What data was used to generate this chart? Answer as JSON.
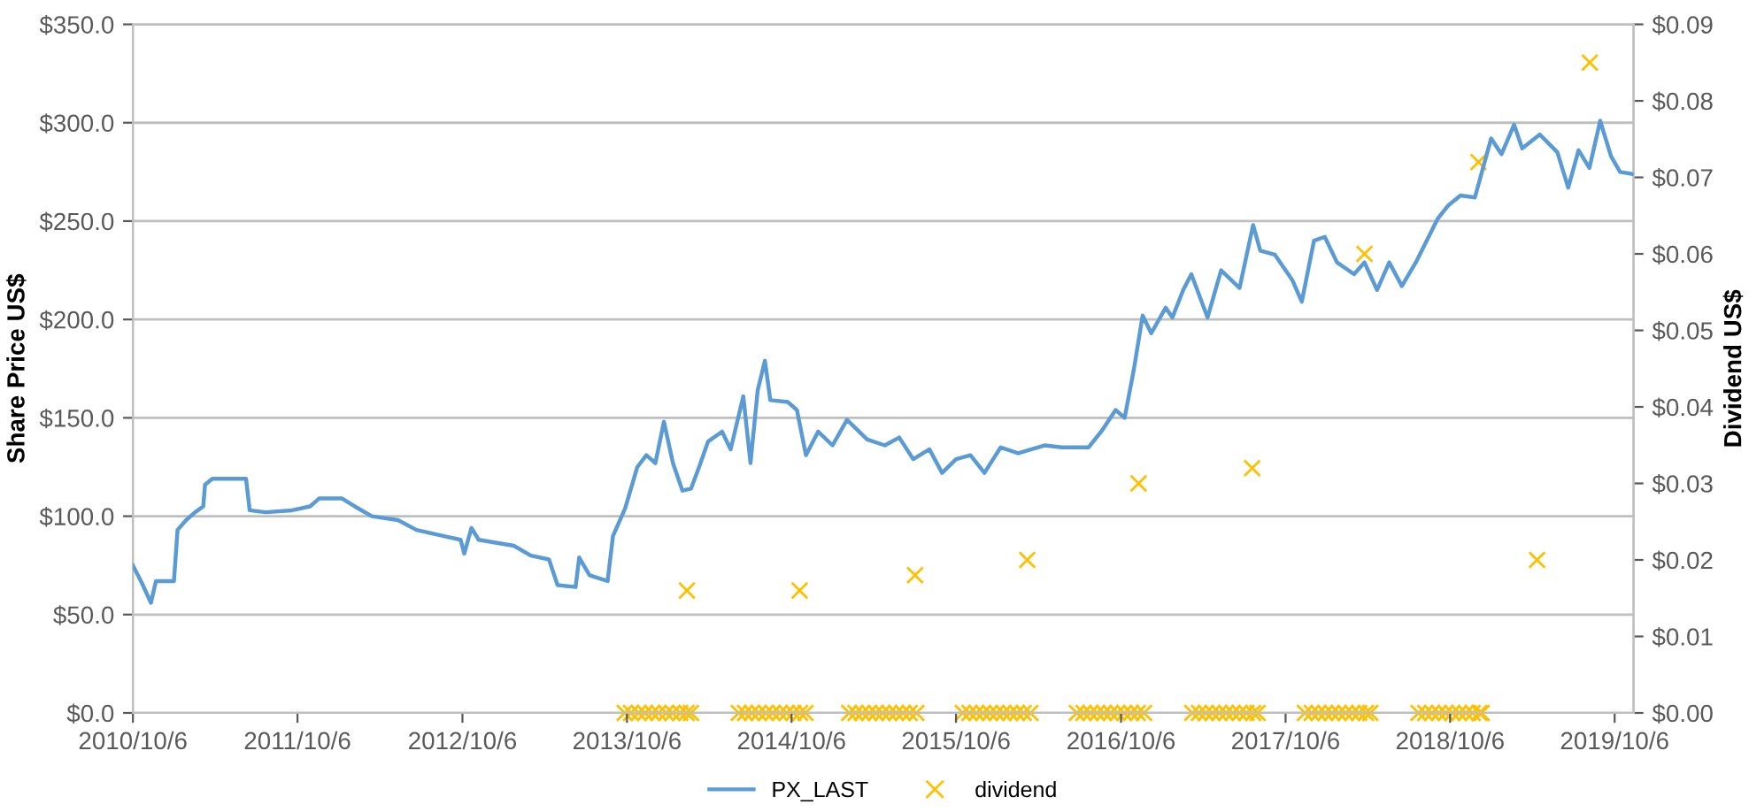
{
  "chart_data": {
    "type": "line",
    "ylabel": "Share Price US$",
    "y2label": "Dividend US$",
    "xlim": [
      "2010-10-06",
      "2019-11-17"
    ],
    "xticks": [
      {
        "value": "2010-10-06",
        "label": "2010/10/6"
      },
      {
        "value": "2011-10-06",
        "label": "2011/10/6"
      },
      {
        "value": "2012-10-06",
        "label": "2012/10/6"
      },
      {
        "value": "2013-10-06",
        "label": "2013/10/6"
      },
      {
        "value": "2014-10-06",
        "label": "2014/10/6"
      },
      {
        "value": "2015-10-06",
        "label": "2015/10/6"
      },
      {
        "value": "2016-10-06",
        "label": "2016/10/6"
      },
      {
        "value": "2017-10-06",
        "label": "2017/10/6"
      },
      {
        "value": "2018-10-06",
        "label": "2018/10/6"
      },
      {
        "value": "2019-10-06",
        "label": "2019/10/6"
      }
    ],
    "ylim": [
      0,
      350
    ],
    "yticks": [
      {
        "value": 0,
        "label": "$0.0"
      },
      {
        "value": 50,
        "label": "$50.0"
      },
      {
        "value": 100,
        "label": "$100.0"
      },
      {
        "value": 150,
        "label": "$150.0"
      },
      {
        "value": 200,
        "label": "$200.0"
      },
      {
        "value": 250,
        "label": "$250.0"
      },
      {
        "value": 300,
        "label": "$300.0"
      },
      {
        "value": 350,
        "label": "$350.0"
      }
    ],
    "y2lim": [
      0,
      0.09
    ],
    "y2ticks": [
      {
        "value": 0,
        "label": "$0.00"
      },
      {
        "value": 0.01,
        "label": "$0.01"
      },
      {
        "value": 0.02,
        "label": "$0.02"
      },
      {
        "value": 0.03,
        "label": "$0.03"
      },
      {
        "value": 0.04,
        "label": "$0.04"
      },
      {
        "value": 0.05,
        "label": "$0.05"
      },
      {
        "value": 0.06,
        "label": "$0.06"
      },
      {
        "value": 0.07,
        "label": "$0.07"
      },
      {
        "value": 0.08,
        "label": "$0.08"
      },
      {
        "value": 0.09,
        "label": "$0.09"
      }
    ],
    "grid": "y",
    "legend": "bottom",
    "series": [
      {
        "name": "PX_LAST",
        "color": "#5b9bd5",
        "marker": "none",
        "line_style": "solid",
        "x": [
          "2010-10-06",
          "2010-10-26",
          "2010-11-15",
          "2010-11-26",
          "2011-01-05",
          "2011-01-13",
          "2011-02-01",
          "2011-02-21",
          "2011-03-11",
          "2011-03-15",
          "2011-03-31",
          "2011-06-14",
          "2011-06-22",
          "2011-07-27",
          "2011-09-24",
          "2011-11-03",
          "2011-11-23",
          "2012-01-13",
          "2012-02-10",
          "2012-03-19",
          "2012-05-16",
          "2012-06-26",
          "2012-10-02",
          "2012-10-10",
          "2012-10-26",
          "2012-11-11",
          "2013-01-28",
          "2013-03-07",
          "2013-04-16",
          "2013-05-05",
          "2013-06-14",
          "2013-06-22",
          "2013-07-15",
          "2013-08-24",
          "2013-09-05",
          "2013-10-02",
          "2013-10-29",
          "2013-11-18",
          "2013-12-08",
          "2013-12-27",
          "2014-01-16",
          "2014-02-06",
          "2014-02-25",
          "2014-03-15",
          "2014-04-04",
          "2014-05-05",
          "2014-05-24",
          "2014-06-21",
          "2014-07-07",
          "2014-07-23",
          "2014-08-08",
          "2014-08-20",
          "2014-09-28",
          "2014-10-18",
          "2014-11-07",
          "2014-12-04",
          "2015-01-05",
          "2015-02-06",
          "2015-03-23",
          "2015-05-01",
          "2015-06-02",
          "2015-07-03",
          "2015-08-08",
          "2015-09-05",
          "2015-10-06",
          "2015-11-07",
          "2015-12-08",
          "2016-01-13",
          "2016-02-21",
          "2016-04-19",
          "2016-05-28",
          "2016-07-26",
          "2016-08-23",
          "2016-09-24",
          "2016-10-14",
          "2016-11-03",
          "2016-11-23",
          "2016-12-12",
          "2017-01-13",
          "2017-01-28",
          "2017-02-21",
          "2017-03-11",
          "2017-04-16",
          "2017-05-16",
          "2017-06-26",
          "2017-07-26",
          "2017-08-11",
          "2017-09-12",
          "2017-10-21",
          "2017-11-11",
          "2017-12-08",
          "2018-01-01",
          "2018-01-28",
          "2018-03-07",
          "2018-03-30",
          "2018-04-27",
          "2018-05-24",
          "2018-06-21",
          "2018-07-22",
          "2018-09-08",
          "2018-10-02",
          "2018-10-29",
          "2018-11-30",
          "2019-01-05",
          "2019-01-28",
          "2019-02-25",
          "2019-03-15",
          "2019-04-23",
          "2019-06-01",
          "2019-06-25",
          "2019-07-18",
          "2019-08-11",
          "2019-09-04",
          "2019-09-28",
          "2019-10-18",
          "2019-11-14"
        ],
        "values": [
          75,
          66,
          56,
          67,
          67,
          93,
          98,
          102,
          105,
          116,
          119,
          119,
          103,
          102,
          103,
          105,
          109,
          109,
          105,
          100,
          98,
          93,
          88,
          81,
          94,
          88,
          85,
          80,
          78,
          65,
          64,
          79,
          70,
          67,
          90,
          104,
          125,
          131,
          127,
          148,
          127,
          113,
          114,
          125,
          138,
          143,
          134,
          161,
          127,
          164,
          179,
          159,
          158,
          154,
          131,
          143,
          136,
          149,
          139,
          136,
          140,
          129,
          134,
          122,
          129,
          131,
          122,
          135,
          132,
          136,
          135,
          135,
          143,
          154,
          150,
          174,
          202,
          193,
          206,
          201,
          215,
          223,
          201,
          225,
          216,
          248,
          235,
          233,
          220,
          209,
          240,
          242,
          229,
          223,
          229,
          215,
          229,
          217,
          229,
          251,
          258,
          263,
          262,
          292,
          284,
          299,
          287,
          294,
          285,
          267,
          286,
          277,
          301,
          283,
          275,
          274
        ]
      },
      {
        "name": "dividend",
        "type": "scatter",
        "axis": "y2",
        "color": "#ffc000",
        "marker": "cross",
        "x": [
          "2013-10-01",
          "2013-10-15",
          "2013-11-01",
          "2013-11-15",
          "2013-12-01",
          "2013-12-15",
          "2014-01-01",
          "2014-01-15",
          "2014-02-01",
          "2014-02-15",
          "2014-02-16",
          "2014-02-25",
          "2014-06-11",
          "2014-06-25",
          "2014-07-10",
          "2014-07-25",
          "2014-08-10",
          "2014-08-25",
          "2014-09-10",
          "2014-09-25",
          "2014-10-10",
          "2014-10-24",
          "2014-10-25",
          "2014-11-06",
          "2015-02-11",
          "2015-02-25",
          "2015-03-12",
          "2015-03-27",
          "2015-04-11",
          "2015-04-26",
          "2015-05-11",
          "2015-05-26",
          "2015-06-10",
          "2015-06-25",
          "2015-07-07",
          "2015-07-10",
          "2015-10-21",
          "2015-11-05",
          "2015-11-20",
          "2015-12-05",
          "2015-12-20",
          "2016-01-04",
          "2016-01-19",
          "2016-02-03",
          "2016-02-18",
          "2016-03-04",
          "2016-03-12",
          "2016-03-19",
          "2016-06-30",
          "2016-07-15",
          "2016-07-30",
          "2016-08-14",
          "2016-08-29",
          "2016-09-13",
          "2016-09-28",
          "2016-10-13",
          "2016-10-28",
          "2016-11-12",
          "2016-11-14",
          "2016-11-26",
          "2017-03-13",
          "2017-03-28",
          "2017-04-12",
          "2017-04-27",
          "2017-05-12",
          "2017-05-27",
          "2017-06-11",
          "2017-06-26",
          "2017-07-11",
          "2017-07-24",
          "2017-07-26",
          "2017-08-05",
          "2017-11-18",
          "2017-12-03",
          "2017-12-18",
          "2018-01-02",
          "2018-01-17",
          "2018-02-01",
          "2018-02-16",
          "2018-03-03",
          "2018-03-18",
          "2018-03-30",
          "2018-04-02",
          "2018-04-12",
          "2018-07-28",
          "2018-08-12",
          "2018-08-27",
          "2018-09-11",
          "2018-09-26",
          "2018-10-11",
          "2018-10-26",
          "2018-11-10",
          "2018-11-25",
          "2018-12-08",
          "2018-12-10",
          "2018-12-15",
          "2019-04-17",
          "2019-08-12"
        ],
        "values": [
          0,
          0,
          0,
          0,
          0,
          0,
          0,
          0,
          0,
          0,
          0.016,
          0,
          0,
          0,
          0,
          0,
          0,
          0,
          0,
          0,
          0,
          0.016,
          0,
          0,
          0,
          0,
          0,
          0,
          0,
          0,
          0,
          0,
          0,
          0,
          0.018,
          0,
          0,
          0,
          0,
          0,
          0,
          0,
          0,
          0,
          0,
          0,
          0.02,
          0,
          0,
          0,
          0,
          0,
          0,
          0,
          0,
          0,
          0,
          0,
          0.03,
          0,
          0,
          0,
          0,
          0,
          0,
          0,
          0,
          0,
          0,
          0.032,
          0,
          0,
          0,
          0,
          0,
          0,
          0,
          0,
          0,
          0,
          0,
          0.06,
          0,
          0,
          0,
          0,
          0,
          0,
          0,
          0,
          0,
          0,
          0,
          0.072,
          0,
          0,
          0.02,
          0.085
        ]
      }
    ]
  }
}
